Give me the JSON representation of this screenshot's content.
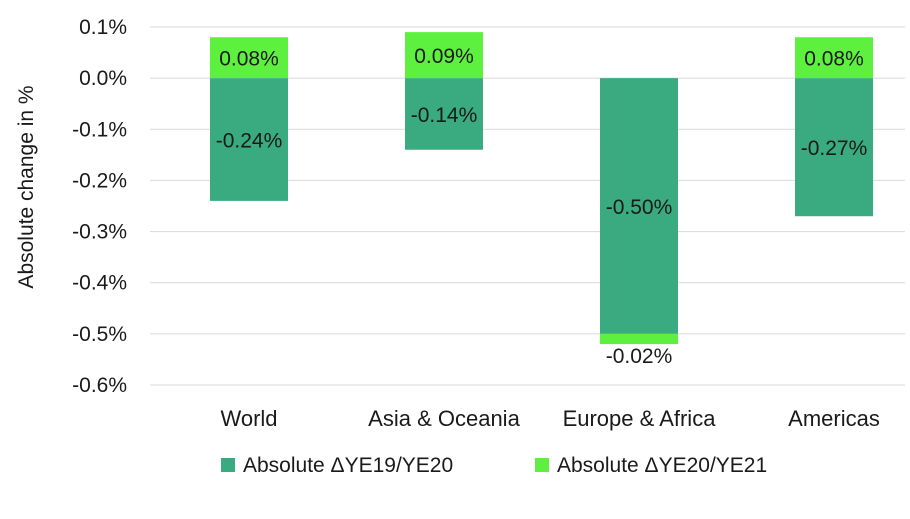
{
  "chart_data": {
    "type": "bar",
    "stacked": true,
    "title": "",
    "xlabel": "",
    "ylabel": "Absolute change in %",
    "ylim": [
      -0.6,
      0.1
    ],
    "yticks": [
      0.1,
      0.0,
      -0.1,
      -0.2,
      -0.3,
      -0.4,
      -0.5,
      -0.6
    ],
    "ytick_labels": [
      "0.1%",
      "0.0%",
      "-0.1%",
      "-0.2%",
      "-0.3%",
      "-0.4%",
      "-0.5%",
      "-0.6%"
    ],
    "grid": true,
    "categories": [
      "World",
      "Asia & Oceania",
      "Europe & Africa",
      "Americas"
    ],
    "series": [
      {
        "name": "Absolute ΔYE19/YE20",
        "color": "#3aaa80",
        "values": [
          -0.24,
          -0.14,
          -0.5,
          -0.27
        ],
        "labels": [
          "-0.24%",
          "-0.14%",
          "-0.50%",
          "-0.27%"
        ]
      },
      {
        "name": "Absolute ΔYE20/YE21",
        "color": "#5ef03f",
        "values": [
          0.08,
          0.09,
          -0.02,
          0.08
        ],
        "labels": [
          "0.08%",
          "0.09%",
          "-0.02%",
          "0.08%"
        ]
      }
    ],
    "legend": "bottom"
  }
}
